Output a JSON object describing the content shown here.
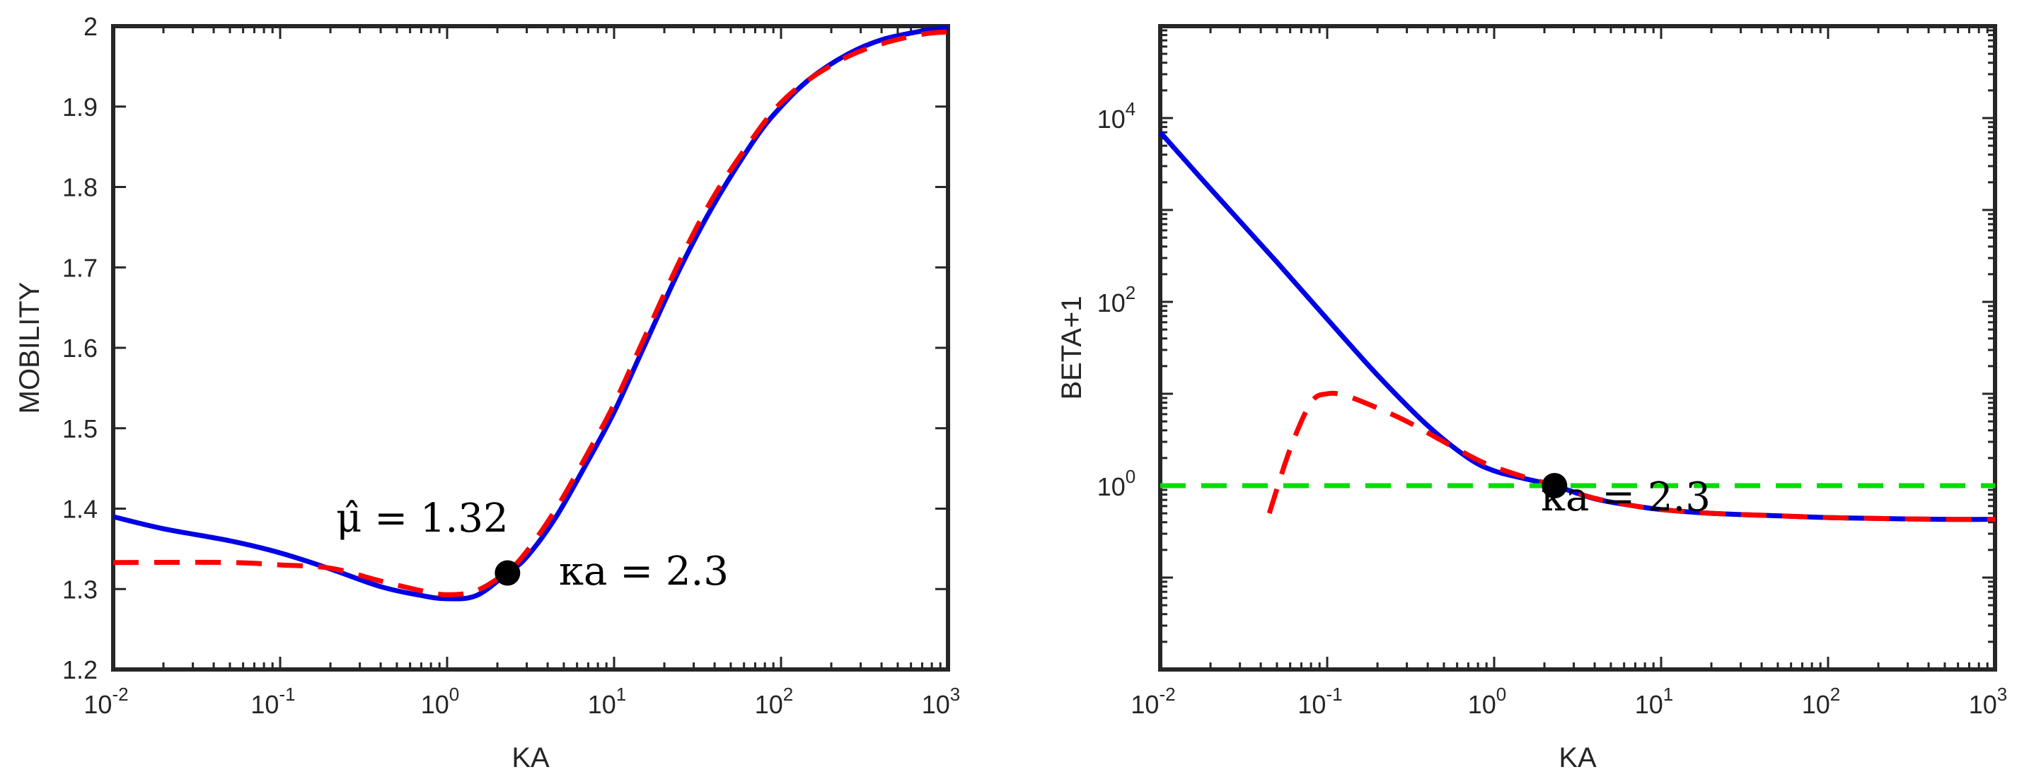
{
  "chart_data": [
    {
      "type": "line",
      "xscale": "log",
      "xlabel": "KA",
      "ylabel": "MOBILITY",
      "xlim": [
        0.01,
        1000
      ],
      "ylim": [
        1.2,
        2.0
      ],
      "xticks": [
        {
          "base": "10",
          "exp": "-2",
          "value": 0.01
        },
        {
          "base": "10",
          "exp": "-1",
          "value": 0.1
        },
        {
          "base": "10",
          "exp": "0",
          "value": 1
        },
        {
          "base": "10",
          "exp": "1",
          "value": 10
        },
        {
          "base": "10",
          "exp": "2",
          "value": 100
        },
        {
          "base": "10",
          "exp": "3",
          "value": 1000
        }
      ],
      "yticks": [
        {
          "label": "1.2",
          "value": 1.2
        },
        {
          "label": "1.3",
          "value": 1.3
        },
        {
          "label": "1.4",
          "value": 1.4
        },
        {
          "label": "1.5",
          "value": 1.5
        },
        {
          "label": "1.6",
          "value": 1.6
        },
        {
          "label": "1.7",
          "value": 1.7
        },
        {
          "label": "1.8",
          "value": 1.8
        },
        {
          "label": "1.9",
          "value": 1.9
        },
        {
          "label": "2",
          "value": 2.0
        }
      ],
      "series": [
        {
          "name": "solid blue",
          "color": "#0000e6",
          "style": "solid",
          "x": [
            0.01,
            0.02,
            0.05,
            0.1,
            0.2,
            0.4,
            0.7,
            1.0,
            1.5,
            2.3,
            3.0,
            4.5,
            7,
            10,
            15,
            25,
            40,
            70,
            100,
            150,
            250,
            400,
            700,
            1000
          ],
          "y": [
            1.39,
            1.375,
            1.36,
            1.345,
            1.325,
            1.303,
            1.292,
            1.288,
            1.292,
            1.32,
            1.34,
            1.39,
            1.46,
            1.52,
            1.6,
            1.7,
            1.78,
            1.86,
            1.9,
            1.935,
            1.965,
            1.983,
            1.994,
            1.998
          ]
        },
        {
          "name": "dashed red",
          "color": "#ff0000",
          "style": "dashed",
          "x": [
            0.01,
            0.05,
            0.1,
            0.2,
            0.4,
            0.7,
            1.0,
            1.5,
            2.3,
            3.0,
            4.5,
            7,
            10,
            15,
            25,
            40,
            70,
            100,
            150,
            250,
            400,
            700,
            1000
          ],
          "y": [
            1.333,
            1.333,
            1.33,
            1.326,
            1.31,
            1.298,
            1.293,
            1.298,
            1.322,
            1.347,
            1.4,
            1.47,
            1.53,
            1.61,
            1.71,
            1.79,
            1.865,
            1.905,
            1.935,
            1.962,
            1.978,
            1.99,
            1.993
          ]
        }
      ],
      "marker": {
        "x": 2.3,
        "y": 1.32,
        "color": "#000000"
      },
      "annotations": [
        {
          "text": "μ̂ = 1.32",
          "x": 0.3,
          "y": 1.385
        },
        {
          "text": "κa = 2.3",
          "x": 7.5,
          "y": 1.3
        }
      ]
    },
    {
      "type": "line",
      "xscale": "log",
      "yscale": "log",
      "xlabel": "KA",
      "ylabel": "BETA+1",
      "xlim": [
        0.01,
        1000
      ],
      "ylim": [
        0.01,
        100000
      ],
      "xticks": [
        {
          "base": "10",
          "exp": "-2",
          "value": 0.01
        },
        {
          "base": "10",
          "exp": "-1",
          "value": 0.1
        },
        {
          "base": "10",
          "exp": "0",
          "value": 1
        },
        {
          "base": "10",
          "exp": "1",
          "value": 10
        },
        {
          "base": "10",
          "exp": "2",
          "value": 100
        },
        {
          "base": "10",
          "exp": "3",
          "value": 1000
        }
      ],
      "yticks": [
        {
          "base": "10",
          "exp": "0",
          "value": 1
        },
        {
          "base": "10",
          "exp": "2",
          "value": 100
        },
        {
          "base": "10",
          "exp": "4",
          "value": 10000
        }
      ],
      "series": [
        {
          "name": "solid blue",
          "color": "#0000e6",
          "style": "solid",
          "x": [
            0.01,
            0.02,
            0.05,
            0.1,
            0.2,
            0.4,
            0.7,
            1.0,
            1.5,
            2.3,
            4,
            7,
            10,
            20,
            50,
            100,
            200,
            500,
            1000
          ],
          "y": [
            7000,
            1700,
            270,
            65,
            16,
            4.5,
            2.0,
            1.45,
            1.2,
            1.0,
            0.72,
            0.6,
            0.55,
            0.5,
            0.47,
            0.45,
            0.44,
            0.43,
            0.43
          ]
        },
        {
          "name": "dashed red",
          "color": "#ff0000",
          "style": "dashed",
          "x": [
            0.045,
            0.06,
            0.08,
            0.1,
            0.13,
            0.2,
            0.3,
            0.5,
            0.8,
            1.0,
            1.5,
            2.3,
            4,
            7,
            10,
            20,
            50,
            100,
            200,
            500,
            1000
          ],
          "y": [
            0.5,
            2.5,
            8.0,
            10.0,
            9.5,
            7.0,
            5.0,
            3.0,
            1.9,
            1.6,
            1.25,
            1.0,
            0.73,
            0.6,
            0.55,
            0.5,
            0.47,
            0.45,
            0.44,
            0.43,
            0.43
          ]
        },
        {
          "name": "dashed green",
          "color": "#00dd00",
          "style": "dashed",
          "x": [
            0.01,
            1000
          ],
          "y": [
            1,
            1
          ]
        }
      ],
      "marker": {
        "x": 2.3,
        "y": 1.0,
        "color": "#000000"
      },
      "annotations": [
        {
          "text": "κa = 2.3",
          "x": 2.0,
          "y": 4.0
        }
      ]
    }
  ]
}
